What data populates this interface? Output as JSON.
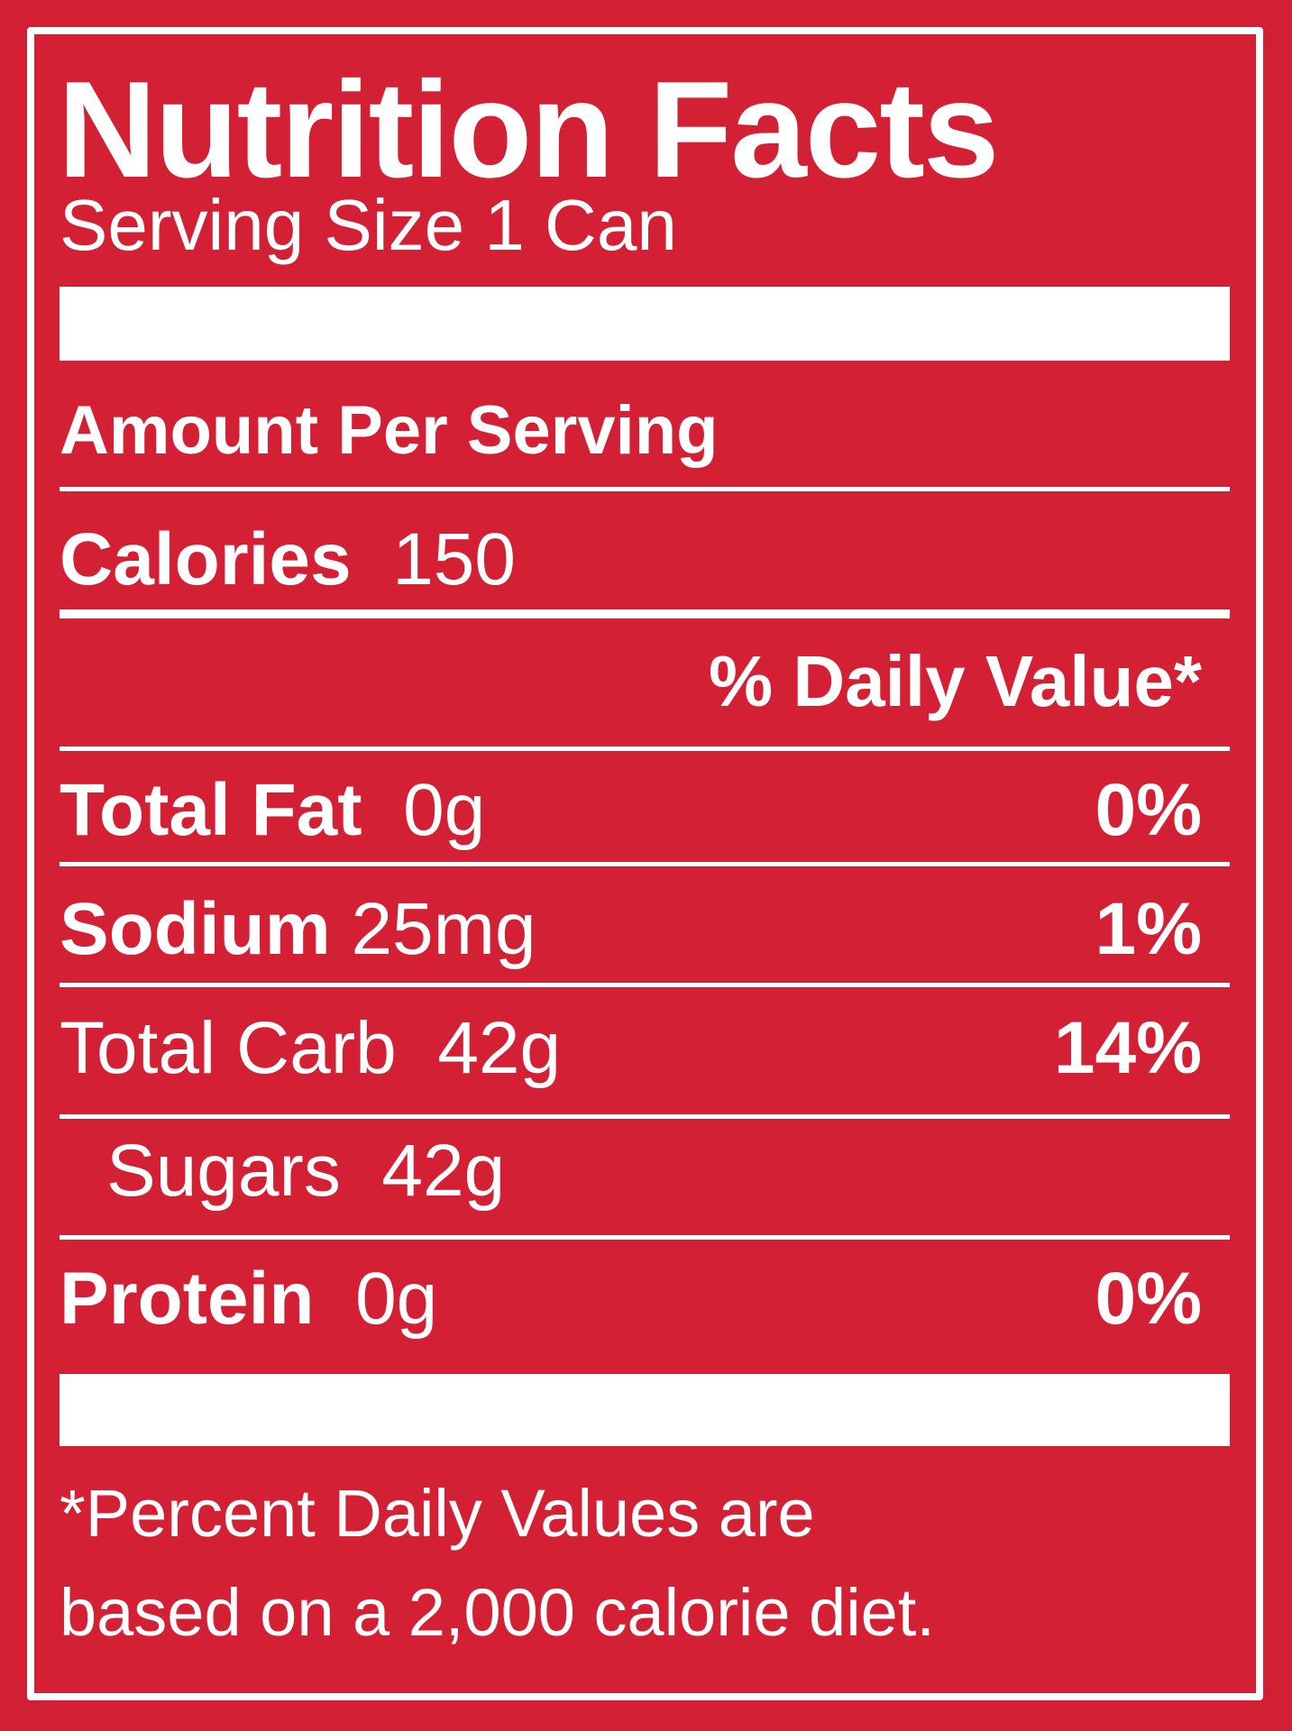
{
  "label": {
    "title": "Nutrition Facts",
    "serving_size": "Serving Size 1 Can",
    "amount_per_serving": "Amount Per Serving",
    "calories_label": "Calories",
    "calories_value": "150",
    "daily_value_header": "% Daily Value*",
    "nutrients": [
      {
        "name": "Total Fat",
        "amount": "0g",
        "dv": "0%"
      },
      {
        "name": "Sodium",
        "amount": "25mg",
        "dv": "1%"
      },
      {
        "name": "Total Carb",
        "amount": "42g",
        "dv": "14%"
      },
      {
        "name": "Sugars",
        "amount": "42g",
        "dv": ""
      },
      {
        "name": "Protein",
        "amount": "0g",
        "dv": "0%"
      }
    ],
    "footnote_line1": "*Percent Daily Values are",
    "footnote_line2": "based on a 2,000 calorie diet."
  },
  "colors": {
    "background": "#d42035",
    "foreground": "#ffffff"
  }
}
